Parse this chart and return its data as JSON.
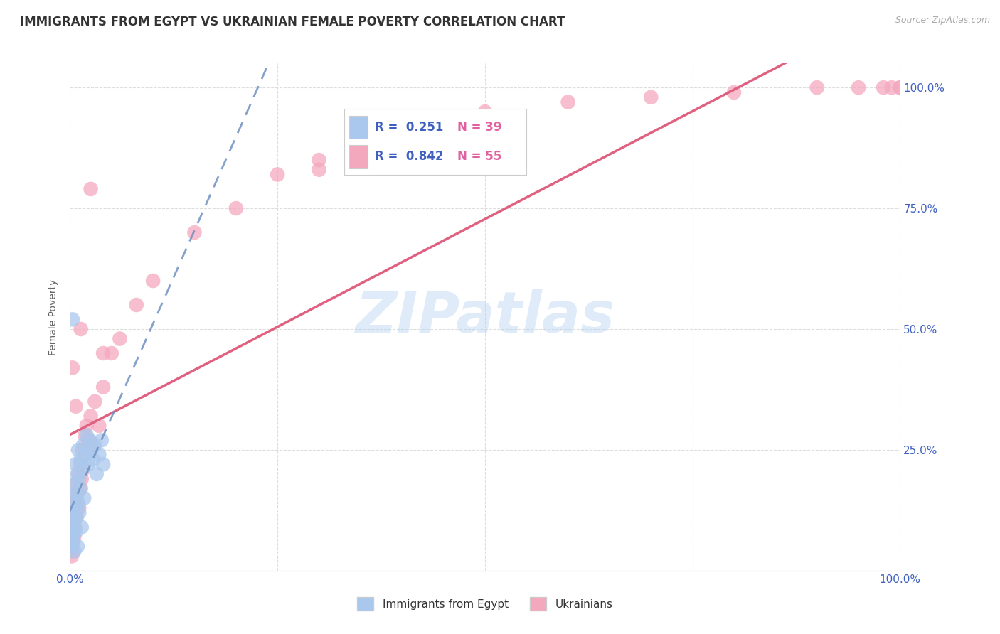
{
  "title": "IMMIGRANTS FROM EGYPT VS UKRAINIAN FEMALE POVERTY CORRELATION CHART",
  "source": "Source: ZipAtlas.com",
  "ylabel": "Female Poverty",
  "xlim": [
    0.0,
    1.0
  ],
  "ylim": [
    0.0,
    1.05
  ],
  "xtick_vals": [
    0.0,
    0.25,
    0.5,
    0.75,
    1.0
  ],
  "xtick_labels": [
    "0.0%",
    "",
    "",
    "",
    "100.0%"
  ],
  "ytick_vals": [
    0.0,
    0.25,
    0.5,
    0.75,
    1.0
  ],
  "ytick_labels_right": [
    "",
    "25.0%",
    "50.0%",
    "75.0%",
    "100.0%"
  ],
  "grid_color": "#dddddd",
  "background_color": "#ffffff",
  "watermark": "ZIPatlas",
  "legend_r1": "R =  0.251",
  "legend_n1": "N = 39",
  "legend_r2": "R =  0.842",
  "legend_n2": "N = 55",
  "blue_color": "#aac8ed",
  "pink_color": "#f4a8be",
  "blue_line_color": "#7090c0",
  "pink_line_color": "#e06080",
  "blue_text_color": "#4060c0",
  "pink_text_color": "#e060a0",
  "egypt_x": [
    0.001,
    0.002,
    0.002,
    0.003,
    0.003,
    0.004,
    0.004,
    0.005,
    0.005,
    0.006,
    0.006,
    0.007,
    0.007,
    0.008,
    0.008,
    0.009,
    0.009,
    0.01,
    0.01,
    0.011,
    0.011,
    0.012,
    0.013,
    0.014,
    0.015,
    0.016,
    0.017,
    0.018,
    0.02,
    0.022,
    0.024,
    0.026,
    0.028,
    0.03,
    0.032,
    0.035,
    0.038,
    0.04,
    0.003
  ],
  "egypt_y": [
    0.08,
    0.05,
    0.12,
    0.07,
    0.15,
    0.06,
    0.1,
    0.04,
    0.09,
    0.13,
    0.18,
    0.08,
    0.22,
    0.11,
    0.16,
    0.05,
    0.2,
    0.14,
    0.25,
    0.12,
    0.19,
    0.17,
    0.23,
    0.09,
    0.21,
    0.26,
    0.15,
    0.24,
    0.28,
    0.22,
    0.27,
    0.25,
    0.23,
    0.26,
    0.2,
    0.24,
    0.27,
    0.22,
    0.52
  ],
  "ukraine_x": [
    0.001,
    0.002,
    0.002,
    0.003,
    0.003,
    0.004,
    0.004,
    0.005,
    0.005,
    0.006,
    0.006,
    0.007,
    0.008,
    0.009,
    0.01,
    0.011,
    0.012,
    0.013,
    0.014,
    0.015,
    0.016,
    0.018,
    0.02,
    0.022,
    0.025,
    0.028,
    0.03,
    0.035,
    0.04,
    0.05,
    0.06,
    0.08,
    0.1,
    0.15,
    0.2,
    0.25,
    0.3,
    0.35,
    0.4,
    0.003,
    0.007,
    0.013,
    0.025,
    0.04,
    0.3,
    0.5,
    0.6,
    0.7,
    0.8,
    0.9,
    0.95,
    0.98,
    0.99,
    1.0,
    1.0
  ],
  "ukraine_y": [
    0.05,
    0.03,
    0.08,
    0.06,
    0.12,
    0.04,
    0.1,
    0.07,
    0.15,
    0.09,
    0.18,
    0.11,
    0.14,
    0.16,
    0.2,
    0.13,
    0.22,
    0.17,
    0.19,
    0.25,
    0.21,
    0.28,
    0.3,
    0.27,
    0.32,
    0.26,
    0.35,
    0.3,
    0.38,
    0.45,
    0.48,
    0.55,
    0.6,
    0.7,
    0.75,
    0.82,
    0.85,
    0.88,
    0.9,
    0.42,
    0.34,
    0.5,
    0.79,
    0.45,
    0.83,
    0.95,
    0.97,
    0.98,
    0.99,
    1.0,
    1.0,
    1.0,
    1.0,
    1.0,
    1.0
  ]
}
